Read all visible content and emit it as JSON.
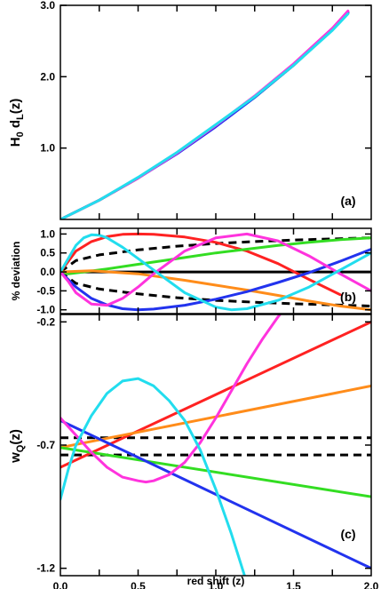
{
  "chart_data": [
    {
      "type": "line",
      "tag": "(a)",
      "ylabel_main": "H",
      "ylabel_sub0": "0",
      "ylabel_mid": " d",
      "ylabel_subL": "L",
      "ylabel_tail": "(z)",
      "xlim": [
        0,
        2
      ],
      "ylim": [
        0,
        3
      ],
      "yticks": [
        {
          "v": 1.0,
          "label": "1.0"
        },
        {
          "v": 2.0,
          "label": "2.0"
        },
        {
          "v": 3.0,
          "label": "3.0"
        }
      ],
      "x_minor": [
        0.25,
        0.5,
        0.75,
        1.0,
        1.25,
        1.5,
        1.75
      ],
      "series": [
        {
          "color": "#ff2222",
          "dash": false,
          "x": [
            0,
            0.25,
            0.5,
            0.75,
            1.0,
            1.25,
            1.5,
            1.75,
            1.85
          ],
          "y": [
            0,
            0.27,
            0.58,
            0.93,
            1.31,
            1.72,
            2.17,
            2.67,
            2.9
          ]
        },
        {
          "color": "#33dd22",
          "dash": false,
          "x": [
            0,
            0.25,
            0.5,
            0.75,
            1.0,
            1.25,
            1.5,
            1.75,
            1.85
          ],
          "y": [
            0,
            0.27,
            0.58,
            0.93,
            1.31,
            1.71,
            2.16,
            2.66,
            2.89
          ]
        },
        {
          "color": "#ff8c1a",
          "dash": false,
          "x": [
            0,
            0.25,
            0.5,
            0.75,
            1.0,
            1.25,
            1.5,
            1.75,
            1.85
          ],
          "y": [
            0,
            0.27,
            0.58,
            0.93,
            1.31,
            1.72,
            2.16,
            2.66,
            2.9
          ]
        },
        {
          "color": "#2233ee",
          "dash": false,
          "x": [
            0,
            0.25,
            0.5,
            0.75,
            1.0,
            1.25,
            1.5,
            1.75,
            1.85
          ],
          "y": [
            0,
            0.27,
            0.58,
            0.92,
            1.3,
            1.71,
            2.16,
            2.67,
            2.9
          ]
        },
        {
          "color": "#ff33dd",
          "dash": false,
          "x": [
            0,
            0.25,
            0.5,
            0.75,
            1.0,
            1.25,
            1.5,
            1.75,
            1.85
          ],
          "y": [
            0,
            0.27,
            0.58,
            0.93,
            1.32,
            1.73,
            2.18,
            2.68,
            2.92
          ]
        },
        {
          "color": "#22ddee",
          "dash": false,
          "x": [
            0,
            0.25,
            0.5,
            0.75,
            1.0,
            1.25,
            1.5,
            1.75,
            1.85
          ],
          "y": [
            0,
            0.27,
            0.59,
            0.94,
            1.33,
            1.72,
            2.16,
            2.65,
            2.88
          ]
        }
      ]
    },
    {
      "type": "line",
      "tag": "(b)",
      "ylabel": "% deviation",
      "xlim": [
        0,
        2
      ],
      "ylim": [
        -1.1,
        1.15
      ],
      "yticks": [
        {
          "v": 1.0,
          "label": "1.0"
        },
        {
          "v": 0.5,
          "label": "0.5"
        },
        {
          "v": 0.0,
          "label": "0.0"
        },
        {
          "v": -0.5,
          "label": "-0.5"
        },
        {
          "v": -1.0,
          "label": "-1.0"
        }
      ],
      "x_minor": [
        0.25,
        0.5,
        0.75,
        1.0,
        1.25,
        1.5,
        1.75
      ],
      "series": [
        {
          "color": "#000000",
          "dash": false,
          "x": [
            0,
            2
          ],
          "y": [
            0,
            0
          ]
        },
        {
          "color": "#000000",
          "dash": true,
          "x": [
            0,
            0.1,
            0.25,
            0.5,
            0.75,
            1.0,
            1.25,
            1.5,
            1.75,
            2.0
          ],
          "y": [
            0,
            0.3,
            0.45,
            0.58,
            0.68,
            0.75,
            0.8,
            0.84,
            0.87,
            0.9
          ]
        },
        {
          "color": "#000000",
          "dash": true,
          "x": [
            0,
            0.1,
            0.25,
            0.5,
            0.75,
            1.0,
            1.25,
            1.5,
            1.75,
            2.0
          ],
          "y": [
            0,
            -0.3,
            -0.45,
            -0.58,
            -0.68,
            -0.75,
            -0.8,
            -0.84,
            -0.87,
            -0.9
          ]
        },
        {
          "color": "#ff2222",
          "dash": false,
          "x": [
            0,
            0.1,
            0.2,
            0.3,
            0.4,
            0.5,
            0.6,
            0.8,
            1.0,
            1.2,
            1.4,
            1.6,
            1.8
          ],
          "y": [
            0,
            0.55,
            0.8,
            0.93,
            0.99,
            1.0,
            0.99,
            0.92,
            0.78,
            0.55,
            0.22,
            -0.2,
            -0.6
          ]
        },
        {
          "color": "#33dd22",
          "dash": false,
          "x": [
            0,
            0.05,
            0.15,
            0.3,
            0.5,
            0.8,
            1.0,
            1.2,
            1.4,
            1.6,
            1.8,
            2.0
          ],
          "y": [
            0,
            -0.05,
            0.0,
            0.08,
            0.2,
            0.38,
            0.5,
            0.6,
            0.7,
            0.78,
            0.85,
            0.9
          ]
        },
        {
          "color": "#ff8c1a",
          "dash": false,
          "x": [
            0,
            0.2,
            0.5,
            0.8,
            1.0,
            1.2,
            1.4,
            1.6,
            1.8,
            2.0
          ],
          "y": [
            0,
            0.03,
            -0.05,
            -0.22,
            -0.35,
            -0.48,
            -0.62,
            -0.77,
            -0.9,
            -1.0
          ]
        },
        {
          "color": "#2233ee",
          "dash": false,
          "x": [
            0,
            0.1,
            0.2,
            0.3,
            0.4,
            0.5,
            0.6,
            0.8,
            1.0,
            1.2,
            1.4,
            1.6,
            1.8,
            2.0
          ],
          "y": [
            0,
            -0.4,
            -0.7,
            -0.87,
            -0.97,
            -1.0,
            -0.98,
            -0.88,
            -0.72,
            -0.52,
            -0.28,
            -0.02,
            0.28,
            0.6
          ]
        },
        {
          "color": "#ff33dd",
          "dash": false,
          "x": [
            0,
            0.05,
            0.1,
            0.2,
            0.3,
            0.4,
            0.5,
            0.6,
            0.8,
            1.0,
            1.2,
            1.4,
            1.6,
            1.8,
            2.0
          ],
          "y": [
            0,
            -0.25,
            -0.55,
            -0.85,
            -0.88,
            -0.7,
            -0.4,
            -0.05,
            0.55,
            0.9,
            1.0,
            0.82,
            0.42,
            -0.05,
            -0.5
          ]
        },
        {
          "color": "#22ddee",
          "dash": false,
          "x": [
            0,
            0.05,
            0.1,
            0.15,
            0.2,
            0.25,
            0.3,
            0.4,
            0.5,
            0.6,
            0.8,
            1.0,
            1.1,
            1.2,
            1.4,
            1.6,
            1.8,
            2.0
          ],
          "y": [
            0,
            0.35,
            0.7,
            0.9,
            0.98,
            0.97,
            0.9,
            0.65,
            0.35,
            0.05,
            -0.55,
            -0.93,
            -1.0,
            -0.97,
            -0.75,
            -0.4,
            0.05,
            0.5
          ]
        }
      ]
    },
    {
      "type": "line",
      "tag": "(c)",
      "ylabel_main": "w",
      "ylabel_sub": "Q",
      "ylabel_tail": "(z)",
      "xlabel": "red shift (z)",
      "xlim": [
        0,
        2
      ],
      "ylim": [
        -1.23,
        -0.17
      ],
      "yticks": [
        {
          "v": -0.2,
          "label": "-0.2"
        },
        {
          "v": -0.7,
          "label": "-0.7"
        },
        {
          "v": -1.2,
          "label": "-1.2"
        }
      ],
      "xticks": [
        {
          "v": 0.0,
          "label": "0.0"
        },
        {
          "v": 0.5,
          "label": "0.5"
        },
        {
          "v": 1.0,
          "label": "1.0"
        },
        {
          "v": 1.5,
          "label": "1.5"
        },
        {
          "v": 2.0,
          "label": "2.0"
        }
      ],
      "x_minor": [
        0.25,
        0.5,
        0.75,
        1.0,
        1.25,
        1.5,
        1.75
      ],
      "series": [
        {
          "color": "#000000",
          "dash": true,
          "x": [
            0,
            2
          ],
          "y": [
            -0.67,
            -0.67
          ]
        },
        {
          "color": "#000000",
          "dash": true,
          "x": [
            0,
            2
          ],
          "y": [
            -0.74,
            -0.74
          ]
        },
        {
          "color": "#ff2222",
          "dash": false,
          "x": [
            0,
            2
          ],
          "y": [
            -0.79,
            -0.2
          ]
        },
        {
          "color": "#ff8c1a",
          "dash": false,
          "x": [
            0,
            2
          ],
          "y": [
            -0.71,
            -0.46
          ]
        },
        {
          "color": "#33dd22",
          "dash": false,
          "x": [
            0,
            2
          ],
          "y": [
            -0.71,
            -0.91
          ]
        },
        {
          "color": "#2233ee",
          "dash": false,
          "x": [
            0,
            2
          ],
          "y": [
            -0.6,
            -1.2
          ]
        },
        {
          "color": "#ff33dd",
          "dash": false,
          "x": [
            0,
            0.1,
            0.2,
            0.3,
            0.4,
            0.5,
            0.55,
            0.6,
            0.7,
            0.8,
            0.9,
            1.0,
            1.1,
            1.2,
            1.3,
            1.4,
            1.45
          ],
          "y": [
            -0.59,
            -0.66,
            -0.73,
            -0.79,
            -0.83,
            -0.845,
            -0.85,
            -0.845,
            -0.82,
            -0.77,
            -0.69,
            -0.59,
            -0.48,
            -0.37,
            -0.27,
            -0.18,
            -0.14
          ]
        },
        {
          "color": "#22ddee",
          "dash": false,
          "x": [
            0,
            0.05,
            0.1,
            0.2,
            0.3,
            0.4,
            0.5,
            0.6,
            0.7,
            0.8,
            0.9,
            1.0,
            1.1,
            1.2
          ],
          "y": [
            -0.92,
            -0.8,
            -0.7,
            -0.58,
            -0.49,
            -0.44,
            -0.43,
            -0.46,
            -0.52,
            -0.6,
            -0.72,
            -0.88,
            -1.06,
            -1.26
          ]
        }
      ]
    }
  ]
}
